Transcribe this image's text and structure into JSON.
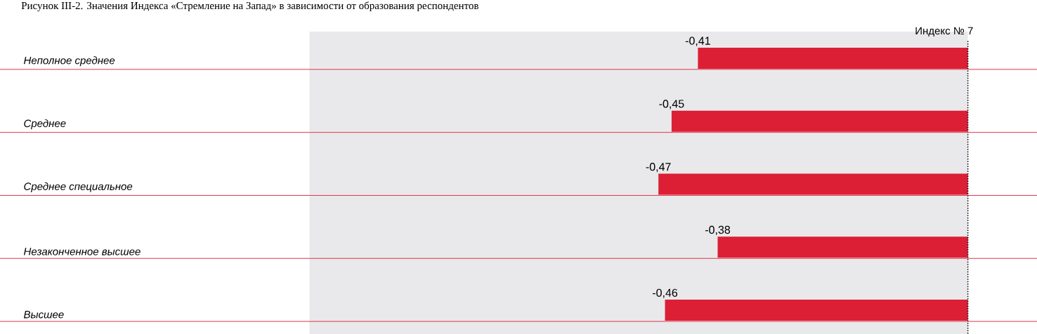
{
  "chart_data": {
    "type": "bar",
    "orientation": "horizontal",
    "title": "Рисунок III-2. Значения Индекса «Стремление на Запад» в зависимости от образования респондентов",
    "categories": [
      "Неполное среднее",
      "Среднее",
      "Среднее специальное",
      "Незаконченное высшее",
      "Высшее"
    ],
    "values": [
      -0.41,
      -0.45,
      -0.47,
      -0.38,
      -0.46
    ],
    "value_labels": [
      "-0,41",
      "-0,45",
      "-0,47",
      "-0,38",
      "-0,46"
    ],
    "color": "#dc1f35",
    "tick_labels": "y",
    "ref_lines": [
      {
        "axis": "x",
        "value": 0,
        "label": "Индекс № 7",
        "color": "#000000",
        "line_style": "dotted"
      },
      {
        "axis": "y",
        "value": "Неполное среднее",
        "color": "#e0344a"
      },
      {
        "axis": "y",
        "value": "Среднее",
        "color": "#e0344a"
      },
      {
        "axis": "y",
        "value": "Среднее специальное",
        "color": "#e0344a"
      },
      {
        "axis": "y",
        "value": "Незаконченное высшее",
        "color": "#e0344a"
      },
      {
        "axis": "y",
        "value": "Высшее",
        "color": "#e0344a"
      }
    ],
    "bands": [
      {
        "axis": "x",
        "from": -1,
        "to": 0,
        "color": "#e9e9eb"
      }
    ]
  }
}
